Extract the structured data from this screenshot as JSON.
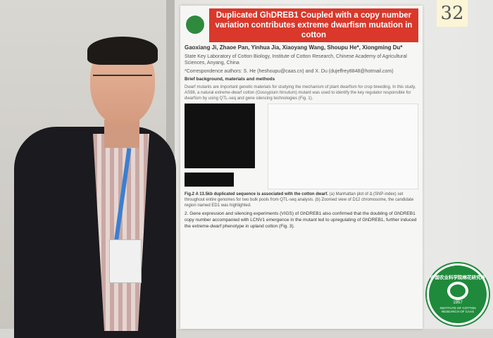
{
  "poster": {
    "title": "Duplicated GhDREB1 Coupled with a copy number variation contributes extreme dwarfism mutation in cotton",
    "authors": "Gaoxiang Ji, Zhaoe Pan, Yinhua Jia, Xiaoyang Wang, Shoupu He*, Xiongming Du*",
    "affiliation": "State Key Laboratory of Cotton Biology, Institute of Cotton Research, Chinese Academy of Agricultural Sciences, Anyang, China",
    "correspondence": "*Correspondence authors: S. He (heshoupu@caas.cn) and X. Du (dujeffrey8848@hotmail.com)",
    "section_background": "Brief background, materials and methods",
    "background_text": "Dwarf mutants are important genetic materials for studying the mechanism of plant dwarfism for crop breeding. In this study, AS98, a natural extreme-dwarf cotton (Gossypium hirsutum) mutant was used to identify the key regulator responsible for dwarfism by using QTL-seq and gene silencing technologies (Fig. 1).",
    "figure_caption_title": "Fig.2 A 13.5kb duplicated sequence is associated with the cotton dwarf.",
    "figure_caption": "(a) Manhattan plot of Δ (SNP-index) set throughout entire genomes for two bulk pools from QTL-seq analysis. (b) Zoomed view of D12 chromosome, the candidate region named ED1 was highlighted.",
    "section_2": "2. Gene expression and silencing experiments (VIGS) of GhDREB1 also confirmed that the doubling of GhDREB1 copy number accompanied with LCNV1 emergence in the mutant led to upregulating of GhDREB1, further induced the extreme-dwarf phenotype in upland cotton (Fig. 3)."
  },
  "sticky_note": "32",
  "watermark": {
    "name_cn": "中国农业科学院棉花研究所",
    "name_en": "INSTITUTE OF COTTON RESEARCH OF CAAS",
    "year": "1957"
  },
  "colors": {
    "title_bar": "#d9382b",
    "logo_green": "#1f8a3b"
  }
}
